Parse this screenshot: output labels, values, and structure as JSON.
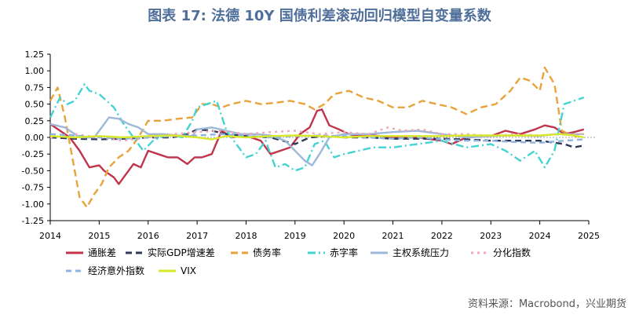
{
  "title": "图表 17: 法德 10Y 国债利差滚动回归模型自变量系数",
  "source": "资料来源：Macrobond，兴业期货",
  "chart_data": {
    "type": "line",
    "title": "图表 17: 法德 10Y 国债利差滚动回归模型自变量系数",
    "xlabel": "",
    "ylabel": "",
    "xlim": [
      2014,
      2025
    ],
    "ylim": [
      -1.25,
      1.25
    ],
    "x_ticks": [
      "2014",
      "2015",
      "2016",
      "2017",
      "2018",
      "2019",
      "2020",
      "2021",
      "2022",
      "2023",
      "2024",
      "2025"
    ],
    "y_ticks": [
      "1.25",
      "1.00",
      "0.75",
      "0.50",
      "0.25",
      "0.00",
      "-0.25",
      "-0.50",
      "-0.75",
      "-1.00",
      "-1.25"
    ],
    "legend_position": "bottom",
    "series": [
      {
        "name": "通胀差",
        "color": "#c0344a",
        "dash": "solid",
        "points": [
          [
            2014.0,
            0.2
          ],
          [
            2014.2,
            0.1
          ],
          [
            2014.4,
            0.0
          ],
          [
            2014.6,
            -0.2
          ],
          [
            2014.8,
            -0.45
          ],
          [
            2015.0,
            -0.42
          ],
          [
            2015.1,
            -0.5
          ],
          [
            2015.3,
            -0.6
          ],
          [
            2015.4,
            -0.7
          ],
          [
            2015.55,
            -0.55
          ],
          [
            2015.7,
            -0.4
          ],
          [
            2015.85,
            -0.45
          ],
          [
            2016.0,
            -0.2
          ],
          [
            2016.2,
            -0.25
          ],
          [
            2016.4,
            -0.3
          ],
          [
            2016.6,
            -0.3
          ],
          [
            2016.8,
            -0.4
          ],
          [
            2016.95,
            -0.3
          ],
          [
            2017.1,
            -0.3
          ],
          [
            2017.3,
            -0.25
          ],
          [
            2017.5,
            0.1
          ],
          [
            2017.7,
            0.0
          ],
          [
            2017.9,
            0.02
          ],
          [
            2018.1,
            0.0
          ],
          [
            2018.3,
            -0.05
          ],
          [
            2018.5,
            -0.25
          ],
          [
            2018.7,
            -0.2
          ],
          [
            2018.9,
            -0.15
          ],
          [
            2019.1,
            0.05
          ],
          [
            2019.3,
            0.15
          ],
          [
            2019.45,
            0.4
          ],
          [
            2019.55,
            0.42
          ],
          [
            2019.7,
            0.18
          ],
          [
            2019.9,
            0.12
          ],
          [
            2020.1,
            0.05
          ],
          [
            2020.3,
            0.02
          ],
          [
            2020.6,
            0.03
          ],
          [
            2021.0,
            0.0
          ],
          [
            2021.5,
            0.0
          ],
          [
            2022.0,
            -0.05
          ],
          [
            2022.2,
            -0.1
          ],
          [
            2022.5,
            0.0
          ],
          [
            2023.0,
            0.02
          ],
          [
            2023.3,
            0.1
          ],
          [
            2023.6,
            0.05
          ],
          [
            2023.9,
            0.12
          ],
          [
            2024.1,
            0.18
          ],
          [
            2024.3,
            0.15
          ],
          [
            2024.5,
            0.05
          ],
          [
            2024.7,
            0.08
          ],
          [
            2024.9,
            0.12
          ]
        ]
      },
      {
        "name": "实际GDP增速差",
        "color": "#2e3a57",
        "dash": "8,5",
        "points": [
          [
            2014.0,
            0.0
          ],
          [
            2014.5,
            -0.02
          ],
          [
            2015.0,
            -0.03
          ],
          [
            2015.5,
            -0.02
          ],
          [
            2016.0,
            0.0
          ],
          [
            2016.5,
            0.0
          ],
          [
            2016.8,
            0.05
          ],
          [
            2017.0,
            0.12
          ],
          [
            2017.3,
            0.1
          ],
          [
            2017.6,
            0.05
          ],
          [
            2018.0,
            0.02
          ],
          [
            2018.5,
            0.0
          ],
          [
            2019.0,
            -0.1
          ],
          [
            2019.3,
            0.0
          ],
          [
            2019.7,
            0.02
          ],
          [
            2020.0,
            0.0
          ],
          [
            2020.5,
            0.0
          ],
          [
            2021.0,
            -0.02
          ],
          [
            2021.5,
            -0.02
          ],
          [
            2022.0,
            -0.02
          ],
          [
            2022.5,
            -0.03
          ],
          [
            2023.0,
            -0.05
          ],
          [
            2023.5,
            -0.05
          ],
          [
            2024.0,
            -0.05
          ],
          [
            2024.5,
            -0.1
          ],
          [
            2024.7,
            -0.15
          ],
          [
            2024.9,
            -0.12
          ]
        ]
      },
      {
        "name": "债务率",
        "color": "#e8a33a",
        "dash": "9,5",
        "points": [
          [
            2014.0,
            0.55
          ],
          [
            2014.15,
            0.75
          ],
          [
            2014.3,
            0.3
          ],
          [
            2014.45,
            -0.3
          ],
          [
            2014.6,
            -0.9
          ],
          [
            2014.75,
            -1.05
          ],
          [
            2014.9,
            -0.85
          ],
          [
            2015.05,
            -0.7
          ],
          [
            2015.2,
            -0.45
          ],
          [
            2015.4,
            -0.3
          ],
          [
            2015.6,
            -0.2
          ],
          [
            2015.8,
            0.0
          ],
          [
            2016.0,
            0.25
          ],
          [
            2016.3,
            0.25
          ],
          [
            2016.6,
            0.28
          ],
          [
            2016.9,
            0.3
          ],
          [
            2017.1,
            0.5
          ],
          [
            2017.3,
            0.5
          ],
          [
            2017.5,
            0.45
          ],
          [
            2017.7,
            0.5
          ],
          [
            2018.0,
            0.55
          ],
          [
            2018.3,
            0.5
          ],
          [
            2018.6,
            0.52
          ],
          [
            2018.9,
            0.55
          ],
          [
            2019.2,
            0.5
          ],
          [
            2019.4,
            0.42
          ],
          [
            2019.6,
            0.5
          ],
          [
            2019.8,
            0.65
          ],
          [
            2020.1,
            0.7
          ],
          [
            2020.4,
            0.6
          ],
          [
            2020.7,
            0.55
          ],
          [
            2021.0,
            0.45
          ],
          [
            2021.3,
            0.45
          ],
          [
            2021.6,
            0.55
          ],
          [
            2021.9,
            0.5
          ],
          [
            2022.2,
            0.45
          ],
          [
            2022.5,
            0.35
          ],
          [
            2022.8,
            0.45
          ],
          [
            2023.1,
            0.5
          ],
          [
            2023.4,
            0.7
          ],
          [
            2023.6,
            0.9
          ],
          [
            2023.8,
            0.85
          ],
          [
            2024.0,
            0.7
          ],
          [
            2024.1,
            1.05
          ],
          [
            2024.3,
            0.8
          ],
          [
            2024.45,
            0.1
          ],
          [
            2024.6,
            0.05
          ],
          [
            2024.8,
            0.0
          ]
        ]
      },
      {
        "name": "赤字率",
        "color": "#44d3d3",
        "dash": "10,4,2,4",
        "points": [
          [
            2014.0,
            0.3
          ],
          [
            2014.2,
            0.6
          ],
          [
            2014.35,
            0.5
          ],
          [
            2014.5,
            0.55
          ],
          [
            2014.7,
            0.8
          ],
          [
            2014.8,
            0.7
          ],
          [
            2015.0,
            0.65
          ],
          [
            2015.3,
            0.45
          ],
          [
            2015.5,
            0.2
          ],
          [
            2015.7,
            0.0
          ],
          [
            2015.9,
            -0.2
          ],
          [
            2016.1,
            -0.05
          ],
          [
            2016.4,
            0.05
          ],
          [
            2016.7,
            0.0
          ],
          [
            2016.9,
            0.25
          ],
          [
            2017.0,
            0.45
          ],
          [
            2017.2,
            0.5
          ],
          [
            2017.4,
            0.55
          ],
          [
            2017.6,
            0.1
          ],
          [
            2017.8,
            -0.1
          ],
          [
            2018.0,
            -0.3
          ],
          [
            2018.2,
            -0.25
          ],
          [
            2018.4,
            -0.05
          ],
          [
            2018.6,
            -0.45
          ],
          [
            2018.8,
            -0.4
          ],
          [
            2019.0,
            -0.5
          ],
          [
            2019.2,
            -0.45
          ],
          [
            2019.4,
            -0.1
          ],
          [
            2019.6,
            -0.05
          ],
          [
            2019.8,
            -0.3
          ],
          [
            2020.0,
            -0.25
          ],
          [
            2020.3,
            -0.2
          ],
          [
            2020.6,
            -0.15
          ],
          [
            2021.0,
            -0.15
          ],
          [
            2021.5,
            -0.1
          ],
          [
            2022.0,
            -0.05
          ],
          [
            2022.5,
            -0.15
          ],
          [
            2023.0,
            -0.1
          ],
          [
            2023.3,
            -0.2
          ],
          [
            2023.6,
            -0.35
          ],
          [
            2023.9,
            -0.2
          ],
          [
            2024.1,
            -0.45
          ],
          [
            2024.3,
            -0.2
          ],
          [
            2024.5,
            0.5
          ],
          [
            2024.7,
            0.55
          ],
          [
            2024.9,
            0.6
          ]
        ]
      },
      {
        "name": "主权系统压力",
        "color": "#9db8d9",
        "dash": "solid",
        "points": [
          [
            2014.0,
            0.2
          ],
          [
            2014.3,
            0.15
          ],
          [
            2014.6,
            0.0
          ],
          [
            2014.9,
            0.0
          ],
          [
            2015.0,
            0.1
          ],
          [
            2015.2,
            0.3
          ],
          [
            2015.4,
            0.28
          ],
          [
            2015.6,
            0.2
          ],
          [
            2015.8,
            0.15
          ],
          [
            2016.0,
            0.05
          ],
          [
            2016.3,
            0.05
          ],
          [
            2016.6,
            0.03
          ],
          [
            2016.9,
            0.02
          ],
          [
            2017.0,
            0.12
          ],
          [
            2017.3,
            0.15
          ],
          [
            2017.6,
            0.1
          ],
          [
            2017.9,
            0.05
          ],
          [
            2018.2,
            0.05
          ],
          [
            2018.5,
            0.03
          ],
          [
            2018.8,
            -0.05
          ],
          [
            2019.0,
            -0.2
          ],
          [
            2019.2,
            -0.35
          ],
          [
            2019.35,
            -0.42
          ],
          [
            2019.5,
            -0.25
          ],
          [
            2019.7,
            0.0
          ],
          [
            2020.0,
            0.05
          ],
          [
            2020.5,
            0.05
          ],
          [
            2021.0,
            0.08
          ],
          [
            2021.5,
            0.1
          ],
          [
            2022.0,
            0.05
          ],
          [
            2022.5,
            0.0
          ],
          [
            2023.0,
            0.02
          ],
          [
            2023.5,
            0.03
          ],
          [
            2024.0,
            0.02
          ],
          [
            2024.3,
            0.05
          ],
          [
            2024.6,
            0.05
          ],
          [
            2024.9,
            0.05
          ]
        ]
      },
      {
        "name": "分化指数",
        "color": "#f3a7b4",
        "dash": "3,5",
        "points": [
          [
            2014.0,
            0.0
          ],
          [
            2014.5,
            0.05
          ],
          [
            2015.0,
            0.0
          ],
          [
            2015.5,
            -0.05
          ],
          [
            2016.0,
            0.0
          ],
          [
            2016.5,
            0.05
          ],
          [
            2017.0,
            0.08
          ],
          [
            2017.5,
            0.1
          ],
          [
            2018.0,
            0.05
          ],
          [
            2018.5,
            0.08
          ],
          [
            2019.0,
            0.1
          ],
          [
            2019.5,
            0.05
          ],
          [
            2020.0,
            0.08
          ],
          [
            2020.5,
            0.05
          ],
          [
            2020.9,
            0.15
          ],
          [
            2021.2,
            0.1
          ],
          [
            2021.6,
            0.12
          ],
          [
            2022.0,
            0.05
          ],
          [
            2022.5,
            0.05
          ],
          [
            2023.0,
            0.02
          ],
          [
            2023.5,
            0.05
          ],
          [
            2024.0,
            0.03
          ],
          [
            2024.5,
            0.05
          ],
          [
            2024.9,
            0.05
          ]
        ]
      },
      {
        "name": "经济意外指数",
        "color": "#8fb3e0",
        "dash": "7,5",
        "points": [
          [
            2014.0,
            0.05
          ],
          [
            2014.5,
            0.03
          ],
          [
            2015.0,
            0.0
          ],
          [
            2015.5,
            -0.02
          ],
          [
            2016.0,
            0.0
          ],
          [
            2016.5,
            0.02
          ],
          [
            2017.0,
            0.03
          ],
          [
            2017.5,
            0.05
          ],
          [
            2018.0,
            0.02
          ],
          [
            2018.5,
            0.0
          ],
          [
            2019.0,
            0.02
          ],
          [
            2019.5,
            0.03
          ],
          [
            2020.0,
            0.02
          ],
          [
            2020.5,
            0.0
          ],
          [
            2021.0,
            -0.02
          ],
          [
            2021.5,
            0.0
          ],
          [
            2022.0,
            -0.03
          ],
          [
            2022.5,
            -0.05
          ],
          [
            2023.0,
            -0.05
          ],
          [
            2023.5,
            -0.07
          ],
          [
            2024.0,
            -0.08
          ],
          [
            2024.5,
            -0.05
          ],
          [
            2024.9,
            -0.03
          ]
        ]
      },
      {
        "name": "VIX",
        "color": "#d7e82a",
        "dash": "solid",
        "points": [
          [
            2014.0,
            0.02
          ],
          [
            2014.5,
            0.0
          ],
          [
            2015.0,
            0.02
          ],
          [
            2015.5,
            0.0
          ],
          [
            2016.0,
            0.02
          ],
          [
            2016.5,
            0.03
          ],
          [
            2017.0,
            0.0
          ],
          [
            2017.3,
            -0.03
          ],
          [
            2017.6,
            0.02
          ],
          [
            2018.0,
            0.0
          ],
          [
            2018.5,
            0.02
          ],
          [
            2019.0,
            0.03
          ],
          [
            2019.5,
            0.02
          ],
          [
            2020.0,
            0.0
          ],
          [
            2020.5,
            0.02
          ],
          [
            2021.0,
            0.02
          ],
          [
            2021.5,
            0.02
          ],
          [
            2022.0,
            0.02
          ],
          [
            2022.5,
            0.03
          ],
          [
            2023.0,
            0.03
          ],
          [
            2023.5,
            0.03
          ],
          [
            2024.0,
            0.03
          ],
          [
            2024.4,
            0.05
          ],
          [
            2024.7,
            0.03
          ],
          [
            2024.9,
            0.0
          ]
        ]
      }
    ]
  }
}
